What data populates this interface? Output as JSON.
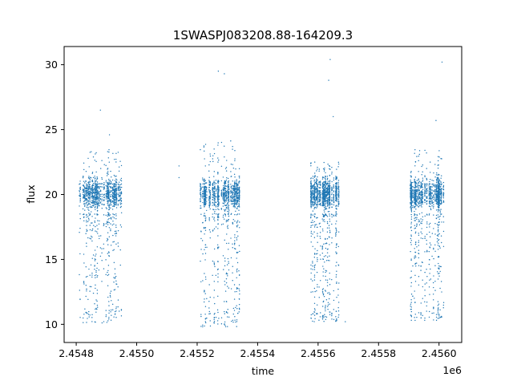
{
  "chart_data": {
    "type": "scatter",
    "title": "1SWASPJ083208.88-164209.3",
    "xlabel": "time",
    "ylabel": "flux",
    "x_offset_label": "1e6",
    "xlim": [
      2454760,
      2456075
    ],
    "ylim": [
      8.6,
      31.4
    ],
    "x_ticks": [
      2454800,
      2455000,
      2455200,
      2455400,
      2455600,
      2455800,
      2456000
    ],
    "x_tick_labels": [
      "2.4548",
      "2.4550",
      "2.4552",
      "2.4554",
      "2.4556",
      "2.4558",
      "2.4560"
    ],
    "y_ticks": [
      10,
      15,
      20,
      25,
      30
    ],
    "y_tick_labels": [
      "10",
      "15",
      "20",
      "25",
      "30"
    ],
    "grid": false,
    "marker_color": "#1f77b4",
    "seasons": [
      {
        "x_start": 2454810,
        "x_end": 2454950,
        "median_flux": 20.0,
        "min_flux": 10.1,
        "max_flux": 23.5
      },
      {
        "x_start": 2455210,
        "x_end": 2455340,
        "median_flux": 20.0,
        "min_flux": 9.8,
        "max_flux": 24.2
      },
      {
        "x_start": 2455575,
        "x_end": 2455670,
        "median_flux": 20.0,
        "min_flux": 10.2,
        "max_flux": 22.5
      },
      {
        "x_start": 2455905,
        "x_end": 2456015,
        "median_flux": 20.0,
        "min_flux": 10.3,
        "max_flux": 23.5
      }
    ],
    "outliers": [
      {
        "x": 2454880,
        "y": 26.5
      },
      {
        "x": 2454910,
        "y": 24.6
      },
      {
        "x": 2455140,
        "y": 22.2
      },
      {
        "x": 2455140,
        "y": 21.3
      },
      {
        "x": 2455270,
        "y": 29.5
      },
      {
        "x": 2455290,
        "y": 29.3
      },
      {
        "x": 2455640,
        "y": 30.4
      },
      {
        "x": 2455635,
        "y": 28.8
      },
      {
        "x": 2455650,
        "y": 26.0
      },
      {
        "x": 2455690,
        "y": 10.2
      },
      {
        "x": 2455990,
        "y": 25.7
      },
      {
        "x": 2456010,
        "y": 30.2
      }
    ]
  }
}
